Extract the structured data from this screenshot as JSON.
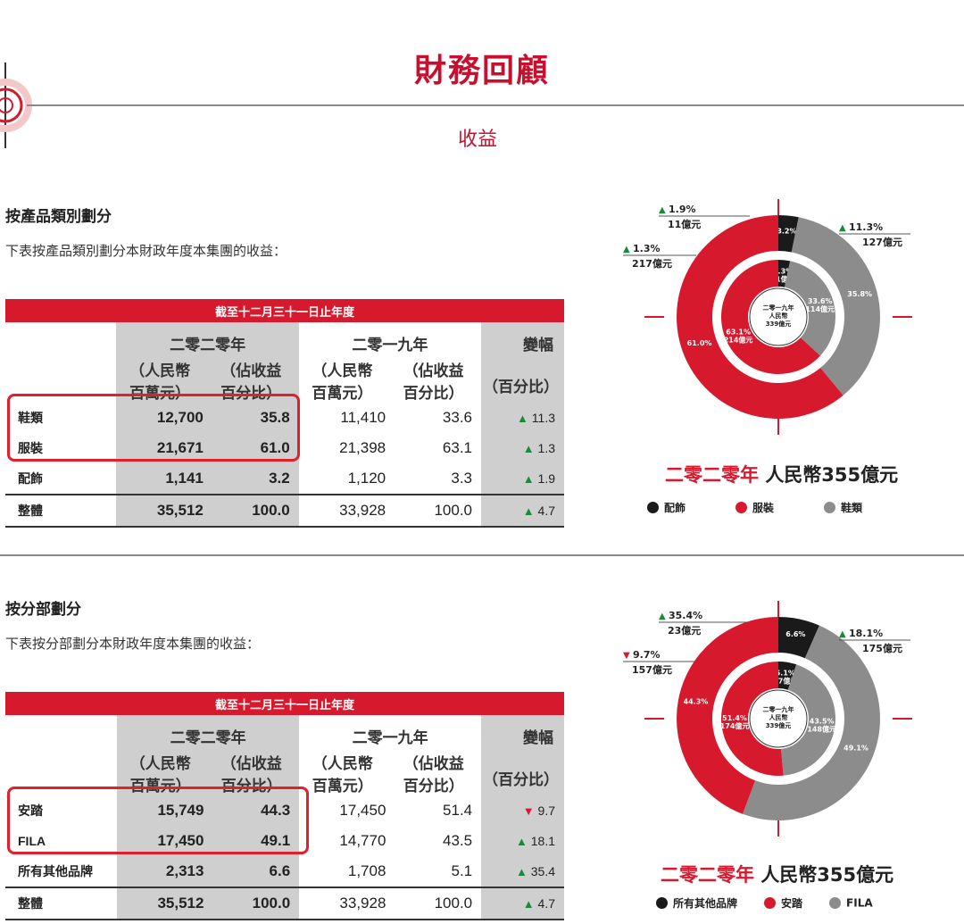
{
  "page": {
    "title": "財務回顧",
    "subtitle": "收益"
  },
  "product": {
    "heading": "按產品類別劃分",
    "description": "下表按產品類別劃分本財政年度本集團的收益：",
    "table": {
      "period_header": "截至十二月三十一日止年度",
      "year_2020": "二零二零年",
      "year_2019": "二零一九年",
      "col_rmb": "（人民幣\n百萬元）",
      "col_pct": "（佔收益\n百分比）",
      "col_change_title": "變幅",
      "col_change_unit": "（百分比）",
      "rows": [
        {
          "label": "鞋類",
          "rmb_2020": "12,700",
          "pct_2020": "35.8",
          "rmb_2019": "11,410",
          "pct_2019": "33.6",
          "change": "11.3",
          "dir": "up"
        },
        {
          "label": "服裝",
          "rmb_2020": "21,671",
          "pct_2020": "61.0",
          "rmb_2019": "21,398",
          "pct_2019": "63.1",
          "change": "1.3",
          "dir": "up"
        },
        {
          "label": "配飾",
          "rmb_2020": "1,141",
          "pct_2020": "3.2",
          "rmb_2019": "1,120",
          "pct_2019": "3.3",
          "change": "1.9",
          "dir": "up"
        },
        {
          "label": "整體",
          "rmb_2020": "35,512",
          "pct_2020": "100.0",
          "rmb_2019": "33,928",
          "pct_2019": "100.0",
          "change": "4.7",
          "dir": "up"
        }
      ]
    },
    "donut": {
      "caption_year": "二零二零年",
      "caption_total": "人民幣355億元",
      "center_text": [
        "二零一九年",
        "人民幣",
        "339億元"
      ],
      "outer": [
        {
          "name": "配飾",
          "pct": 3.2,
          "label": "3.2%",
          "color": "#1a1a1a"
        },
        {
          "name": "鞋類",
          "pct": 35.8,
          "label": "35.8%",
          "color": "#8c8c8c"
        },
        {
          "name": "服裝",
          "pct": 61.0,
          "label": "61.0%",
          "color": "#d7192e"
        }
      ],
      "inner": [
        {
          "name": "配飾",
          "pct": 3.3,
          "label": "3.3%",
          "sub": "11億元",
          "color": "#1a1a1a"
        },
        {
          "name": "鞋類",
          "pct": 33.6,
          "label": "33.6%",
          "sub": "114億元",
          "color": "#8c8c8c"
        },
        {
          "name": "服裝",
          "pct": 63.1,
          "label": "63.1%",
          "sub": "214億元",
          "color": "#d7192e"
        }
      ],
      "callouts": [
        {
          "pct": "1.9%",
          "amount": "11億元",
          "dir": "up"
        },
        {
          "pct": "1.3%",
          "amount": "217億元",
          "dir": "up"
        },
        {
          "pct": "11.3%",
          "amount": "127億元",
          "dir": "up"
        }
      ],
      "legend": [
        {
          "name": "配飾",
          "color": "#1a1a1a"
        },
        {
          "name": "服裝",
          "color": "#d7192e"
        },
        {
          "name": "鞋類",
          "color": "#8c8c8c"
        }
      ]
    }
  },
  "segment": {
    "heading": "按分部劃分",
    "description": "下表按分部劃分本財政年度本集團的收益：",
    "table": {
      "period_header": "截至十二月三十一日止年度",
      "year_2020": "二零二零年",
      "year_2019": "二零一九年",
      "col_rmb": "（人民幣\n百萬元）",
      "col_pct": "（佔收益\n百分比）",
      "col_change_title": "變幅",
      "col_change_unit": "（百分比）",
      "rows": [
        {
          "label": "安踏",
          "rmb_2020": "15,749",
          "pct_2020": "44.3",
          "rmb_2019": "17,450",
          "pct_2019": "51.4",
          "change": "9.7",
          "dir": "down"
        },
        {
          "label": "FILA",
          "rmb_2020": "17,450",
          "pct_2020": "49.1",
          "rmb_2019": "14,770",
          "pct_2019": "43.5",
          "change": "18.1",
          "dir": "up"
        },
        {
          "label": "所有其他品牌",
          "rmb_2020": "2,313",
          "pct_2020": "6.6",
          "rmb_2019": "1,708",
          "pct_2019": "5.1",
          "change": "35.4",
          "dir": "up"
        },
        {
          "label": "整體",
          "rmb_2020": "35,512",
          "pct_2020": "100.0",
          "rmb_2019": "33,928",
          "pct_2019": "100.0",
          "change": "4.7",
          "dir": "up"
        }
      ]
    },
    "donut": {
      "caption_year": "二零二零年",
      "caption_total": "人民幣355億元",
      "center_text": [
        "二零一九年",
        "人民幣",
        "339億元"
      ],
      "outer": [
        {
          "name": "所有其他品牌",
          "pct": 6.6,
          "label": "6.6%",
          "color": "#1a1a1a"
        },
        {
          "name": "FILA",
          "pct": 49.1,
          "label": "49.1%",
          "color": "#8c8c8c"
        },
        {
          "name": "安踏",
          "pct": 44.3,
          "label": "44.3%",
          "color": "#d7192e"
        }
      ],
      "inner": [
        {
          "name": "所有其他品牌",
          "pct": 5.1,
          "label": "5.1%",
          "sub": "17億元",
          "color": "#1a1a1a"
        },
        {
          "name": "FILA",
          "pct": 43.5,
          "label": "43.5%",
          "sub": "148億元",
          "color": "#8c8c8c"
        },
        {
          "name": "安踏",
          "pct": 51.4,
          "label": "51.4%",
          "sub": "174億元",
          "color": "#d7192e"
        }
      ],
      "callouts": [
        {
          "pct": "35.4%",
          "amount": "23億元",
          "dir": "up"
        },
        {
          "pct": "9.7%",
          "amount": "157億元",
          "dir": "down"
        },
        {
          "pct": "18.1%",
          "amount": "175億元",
          "dir": "up"
        }
      ],
      "legend": [
        {
          "name": "所有其他品牌",
          "color": "#1a1a1a"
        },
        {
          "name": "安踏",
          "color": "#d7192e"
        },
        {
          "name": "FILA",
          "color": "#8c8c8c"
        }
      ]
    }
  },
  "colors": {
    "accent": "#c8102e",
    "red_bar": "#d7192e",
    "gray_band": "#cfcfcf",
    "up": "#1a8a3a"
  }
}
